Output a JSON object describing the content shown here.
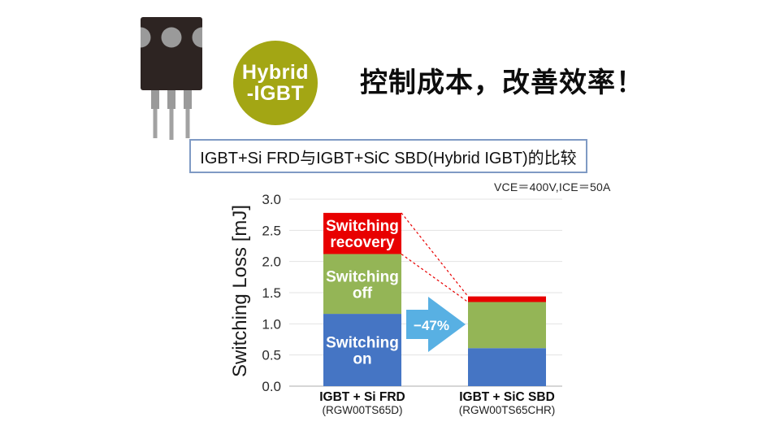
{
  "hero": {
    "badge_line1": "Hybrid",
    "badge_line2": "-IGBT",
    "badge_color": "#a3a614",
    "title": "控制成本，改善效率！",
    "subtitle": "IGBT+Si FRD与IGBT+SiC SBD(Hybrid IGBT)的比较"
  },
  "chart": {
    "condition_note": "VCE＝400V,ICE＝50A",
    "arrow_label": "−47%",
    "arrow_color": "#58b0e3"
  },
  "chart_data": {
    "type": "bar",
    "stacked": true,
    "title": "",
    "xlabel": "",
    "ylabel": "Switching Loss [mJ]",
    "ylim": [
      0,
      3.0
    ],
    "ytick_step": 0.5,
    "grid": true,
    "legend": "segment-labels-on-first-bar",
    "categories": [
      "IGBT + Si FRD",
      "IGBT + SiC SBD"
    ],
    "category_subs": [
      "(RGW00TS65D)",
      "(RGW00TS65CHR)"
    ],
    "series": [
      {
        "name": "Switching on",
        "color": "#4575c4",
        "values": [
          1.16,
          0.61
        ]
      },
      {
        "name": "Switching off",
        "color": "#94b556",
        "values": [
          0.96,
          0.74
        ]
      },
      {
        "name": "Switching recovery",
        "color": "#e80000",
        "values": [
          0.66,
          0.09
        ]
      }
    ],
    "totals": [
      2.78,
      1.44
    ],
    "reduction_label": "−47%",
    "connector_color": "#e80000",
    "gridline_color": "#e3e3e3",
    "baseline_color": "#c8c8c8"
  }
}
